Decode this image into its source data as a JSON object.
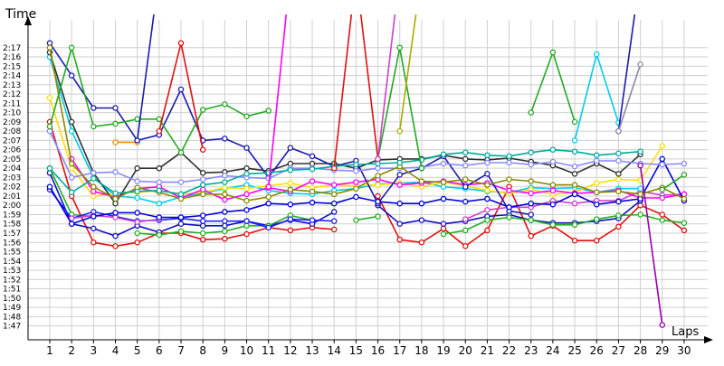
{
  "chart_data": {
    "type": "line",
    "title": "",
    "ylabel": "Time",
    "xlabel": "Laps",
    "x": [
      1,
      2,
      3,
      4,
      5,
      6,
      7,
      8,
      9,
      10,
      11,
      12,
      13,
      14,
      15,
      16,
      17,
      18,
      19,
      20,
      21,
      22,
      23,
      24,
      25,
      26,
      27,
      28,
      29,
      30
    ],
    "y_tick_labels": [
      "1:47",
      "1:48",
      "1:49",
      "1:50",
      "1:51",
      "1:52",
      "1:53",
      "1:54",
      "1:55",
      "1:56",
      "1:57",
      "1:58",
      "1:59",
      "2:00",
      "2:01",
      "2:02",
      "2:03",
      "2:04",
      "2:05",
      "2:06",
      "2:07",
      "2:08",
      "2:09",
      "2:10",
      "2:11",
      "2:12",
      "2:13",
      "2:14",
      "2:15",
      "2:16",
      "2:17"
    ],
    "y_tick_seconds": [
      107,
      108,
      109,
      110,
      111,
      112,
      113,
      114,
      115,
      116,
      117,
      118,
      119,
      120,
      121,
      122,
      123,
      124,
      125,
      126,
      127,
      128,
      129,
      130,
      131,
      132,
      133,
      134,
      135,
      136,
      137
    ],
    "ylim_seconds": [
      105.5,
      140
    ],
    "grid": true,
    "legend": "none",
    "series": [
      {
        "color": "#e01010",
        "values": [
          129,
          121,
          116,
          115.6,
          116,
          117,
          117,
          116.3,
          116.4,
          116.9,
          117.6,
          117.3,
          117.6,
          117.4,
          null,
          null,
          null,
          null,
          null,
          null,
          null,
          null,
          null,
          null,
          null,
          null,
          null,
          null,
          null,
          null
        ]
      },
      {
        "color": "#e01010",
        "values": [
          null,
          null,
          null,
          null,
          null,
          null,
          null,
          null,
          null,
          null,
          null,
          null,
          null,
          null,
          null,
          121,
          116.3,
          116,
          117.5,
          115.6,
          117.3,
          122,
          116.7,
          117.8,
          116.2,
          116.2,
          117.7,
          120,
          119,
          117.3
        ]
      },
      {
        "color": "#1010c0",
        "values": [
          123.5,
          118,
          117.5,
          116.7,
          117.8,
          117.1,
          118,
          117.8,
          117.8,
          118.3,
          117.8,
          118.4,
          118,
          119.3,
          null,
          null,
          null,
          null,
          null,
          null,
          null,
          null,
          null,
          null,
          null,
          null,
          null,
          null,
          null,
          null
        ]
      },
      {
        "color": "#1010c0",
        "values": [
          null,
          null,
          null,
          null,
          null,
          null,
          null,
          null,
          null,
          null,
          null,
          null,
          null,
          null,
          null,
          120,
          118,
          118.4,
          118,
          118.3,
          118.8,
          119,
          118.4,
          118.1,
          118.1,
          118.3,
          118.6,
          120.5,
          null,
          null
        ]
      },
      {
        "color": "#20b020",
        "values": [
          124,
          119,
          118.8,
          null,
          117,
          116.8,
          117.2,
          117,
          117.2,
          117.8,
          117.8,
          118.9,
          118.4,
          null,
          118.4,
          118.8,
          null,
          null,
          116.9,
          117.3,
          118.4,
          118.7,
          118.4,
          117.9,
          117.9,
          118.5,
          118.9,
          119,
          118.4,
          118.1
        ]
      },
      {
        "color": "#2020ff",
        "values": [
          121.7,
          118.6,
          119.3,
          118.8,
          118.3,
          118.4,
          118.6,
          118.3,
          118.3,
          118.3,
          117.6,
          118.5,
          118.4,
          118.3,
          null,
          null,
          null,
          null,
          null,
          null,
          null,
          null,
          null,
          null,
          null,
          null,
          null,
          null,
          null,
          null
        ]
      },
      {
        "color": "#cc40cc",
        "values": [
          null,
          118.6,
          118.9,
          118.7,
          118.2,
          118.5,
          null,
          null,
          null,
          null,
          null,
          null,
          null,
          null,
          null,
          null,
          null,
          null,
          null,
          118.5,
          119.5,
          119.8,
          119.8,
          120.5,
          120.2,
          120.5,
          120.5,
          121.5,
          121.1,
          121.2
        ]
      },
      {
        "color": "#00ccee",
        "values": [
          136,
          128,
          123,
          121,
          120.8,
          120.2,
          120.9,
          121.3,
          121.8,
          122.2,
          121.6,
          121.3,
          121.2,
          121.6,
          121.8,
          122.3,
          122.4,
          122.5,
          122,
          121.8,
          121.5,
          121.4,
          121.9,
          121.8,
          121.9,
          121.4,
          121.8,
          121.8,
          null,
          null
        ]
      },
      {
        "color": "#ffdd00",
        "values": [
          131.6,
          124,
          121,
          121.3,
          121.4,
          121.6,
          121.2,
          121.4,
          121.9,
          121.8,
          122.1,
          122.4,
          121.9,
          122.2,
          122.1,
          122.2,
          122.4,
          122,
          122.5,
          122.1,
          121.6,
          121.3,
          121.7,
          121.2,
          121.4,
          122.4,
          122.8,
          122.7,
          126.4,
          null
        ]
      },
      {
        "color": "#ff00ff",
        "values": [
          null,
          125,
          121.5,
          120.9,
          121.8,
          122,
          120.8,
          121.7,
          120.6,
          121.2,
          121.9,
          121.5,
          122.6,
          122.2,
          122.5,
          122.8,
          122.2,
          122.4,
          122.6,
          122.2,
          122.4,
          121.6,
          121.3,
          121.6,
          121.3,
          121.4,
          121.6,
          120.8,
          120.8,
          121.2
        ]
      },
      {
        "color": "#303030",
        "values": [
          136.5,
          129,
          123.5,
          120.2,
          124,
          124,
          125.7,
          123.5,
          123.6,
          124,
          123.7,
          124.5,
          124.5,
          124.5,
          124,
          124.9,
          125,
          125,
          125.4,
          125,
          124.9,
          125.1,
          124.7,
          124.3,
          123.4,
          124.5,
          123.4,
          125.5,
          null,
          null
        ]
      },
      {
        "color": "#1a1ab0",
        "values": [
          137.5,
          134,
          130.5,
          130.5,
          127,
          127.6,
          132.5,
          127,
          127.2,
          126.2,
          123,
          126.2,
          125.3,
          124.2,
          124.8,
          120.2,
          123.3,
          124,
          125.3,
          122,
          123.4,
          119.4,
          119,
          null,
          null,
          null,
          null,
          null,
          null,
          null
        ]
      },
      {
        "color": "#0000dd",
        "values": [
          122,
          118,
          118.8,
          119.2,
          119.2,
          118.7,
          118.7,
          118.9,
          119.3,
          119.5,
          120.2,
          120.1,
          120.3,
          120.2,
          120.9,
          120.4,
          120.2,
          120.2,
          120.7,
          120.4,
          120.7,
          119.8,
          120.2,
          120.1,
          121.2,
          120.1,
          120.4,
          120.7,
          125,
          120.5
        ]
      },
      {
        "color": "#8888ff",
        "values": [
          128,
          123,
          123.5,
          123.6,
          122.6,
          122.5,
          122.5,
          122.8,
          123.2,
          123,
          122.9,
          124,
          124,
          123.8,
          123.7,
          124,
          124,
          124.1,
          124.5,
          124.3,
          124.6,
          124.6,
          124.4,
          124.7,
          124.2,
          124.8,
          124.8,
          124.5,
          124.4,
          124.5
        ]
      },
      {
        "color": "#888800",
        "values": [
          137,
          124.5,
          122,
          120.7,
          121.9,
          121.4,
          120.7,
          121.2,
          121.2,
          120.5,
          120.9,
          121.7,
          121.5,
          121.2,
          121.8,
          123.2,
          124.2,
          122.6,
          122.5,
          122.8,
          122.2,
          122.8,
          122.6,
          122.2,
          122.2,
          121.4,
          121.5,
          121.2,
          121.9,
          120.7
        ]
      },
      {
        "color": "#00aa99",
        "values": [
          124,
          121.4,
          122.9,
          121.3,
          121.5,
          121.6,
          121.2,
          122.2,
          122.5,
          123.4,
          123.5,
          123.8,
          123.9,
          124.2,
          124.4,
          124.5,
          124.6,
          124.9,
          125.5,
          125.7,
          125.4,
          125.3,
          125.7,
          126,
          125.8,
          125.4,
          125.6,
          125.8,
          null,
          null
        ]
      },
      {
        "color": "#20aa20",
        "values": [
          128.5,
          137,
          128.5,
          128.8,
          129.3,
          129.3,
          125.7,
          130.3,
          130.9,
          129.6,
          130.2,
          null,
          null,
          null,
          null,
          null,
          null,
          null,
          null,
          null,
          null,
          null,
          null,
          null,
          null,
          null,
          null,
          null,
          null,
          null
        ]
      },
      {
        "color": "#20aa20",
        "values": [
          null,
          null,
          null,
          null,
          null,
          null,
          null,
          null,
          null,
          null,
          null,
          null,
          null,
          null,
          null,
          null,
          null,
          null,
          null,
          null,
          null,
          null,
          null,
          null,
          null,
          null,
          null,
          null,
          121.7,
          123.3
        ]
      },
      {
        "color": "#00ccee",
        "values": [
          null,
          null,
          null,
          null,
          null,
          null,
          null,
          null,
          null,
          null,
          null,
          null,
          null,
          null,
          null,
          null,
          null,
          null,
          null,
          null,
          null,
          null,
          null,
          null,
          127,
          136.3,
          128.9,
          null,
          null,
          null
        ]
      },
      {
        "color": "#9900aa",
        "values": [
          null,
          null,
          null,
          null,
          null,
          null,
          null,
          null,
          null,
          null,
          null,
          null,
          null,
          null,
          null,
          null,
          null,
          null,
          null,
          null,
          null,
          null,
          null,
          null,
          null,
          null,
          null,
          124.3,
          107.1,
          null
        ]
      },
      {
        "color": "#ff8800",
        "values": [
          null,
          null,
          null,
          126.8,
          126.8,
          null,
          null,
          null,
          null,
          null,
          null,
          null,
          null,
          null,
          null,
          null,
          null,
          null,
          null,
          null,
          null,
          null,
          null,
          null,
          null,
          null,
          null,
          null,
          null,
          null
        ]
      }
    ],
    "spikes": [
      {
        "color": "#e01010",
        "x": [
          6,
          7,
          8
        ],
        "values": [
          128,
          137.5,
          126
        ]
      },
      {
        "color": "#1a1ab0",
        "x": [
          5,
          6
        ],
        "values": [
          127,
          145
        ]
      },
      {
        "color": "#ff00ff",
        "x": [
          11,
          12
        ],
        "values": [
          122,
          145
        ]
      },
      {
        "color": "#e01010",
        "x": [
          14,
          15,
          16
        ],
        "values": [
          124,
          145,
          125
        ]
      },
      {
        "color": "#20aa20",
        "x": [
          16,
          17,
          18
        ],
        "values": [
          125,
          137,
          124
        ]
      },
      {
        "color": "#aaaa00",
        "x": [
          17,
          18
        ],
        "values": [
          128,
          145
        ]
      },
      {
        "color": "#cc40cc",
        "x": [
          16,
          17
        ],
        "values": [
          125,
          145
        ]
      },
      {
        "color": "#20aa20",
        "x": [
          23,
          24,
          25
        ],
        "values": [
          130,
          136.5,
          129
        ]
      },
      {
        "color": "#1a1ab0",
        "x": [
          27,
          28
        ],
        "values": [
          128,
          145
        ]
      },
      {
        "color": "#8888aa",
        "x": [
          27,
          28
        ],
        "values": [
          128,
          135.2
        ]
      }
    ]
  }
}
